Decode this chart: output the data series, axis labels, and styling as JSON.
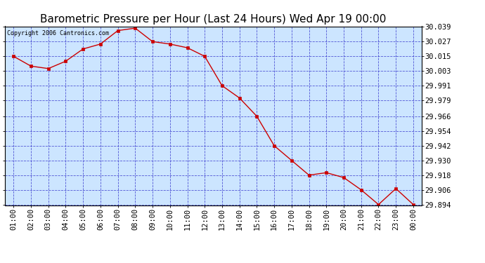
{
  "title": "Barometric Pressure per Hour (Last 24 Hours) Wed Apr 19 00:00",
  "copyright": "Copyright 2006 Cantronics.com",
  "x_labels": [
    "01:00",
    "02:00",
    "03:00",
    "04:00",
    "05:00",
    "06:00",
    "07:00",
    "08:00",
    "09:00",
    "10:00",
    "11:00",
    "12:00",
    "13:00",
    "14:00",
    "15:00",
    "16:00",
    "17:00",
    "18:00",
    "19:00",
    "20:00",
    "21:00",
    "22:00",
    "23:00",
    "00:00"
  ],
  "y_values": [
    30.015,
    30.007,
    30.005,
    30.011,
    30.021,
    30.025,
    30.036,
    30.038,
    30.027,
    30.025,
    30.022,
    30.015,
    29.991,
    29.981,
    29.966,
    29.942,
    29.93,
    29.918,
    29.92,
    29.916,
    29.906,
    29.894,
    29.907,
    29.894
  ],
  "ylim_min": 29.8935,
  "ylim_max": 30.0395,
  "y_ticks": [
    29.894,
    29.906,
    29.918,
    29.93,
    29.942,
    29.954,
    29.966,
    29.979,
    29.991,
    30.003,
    30.015,
    30.027,
    30.039
  ],
  "line_color": "#cc0000",
  "marker_color": "#cc0000",
  "bg_color": "#cce5ff",
  "grid_color": "#3333cc",
  "title_fontsize": 11,
  "tick_fontsize": 7.5,
  "copyright_fontsize": 6
}
